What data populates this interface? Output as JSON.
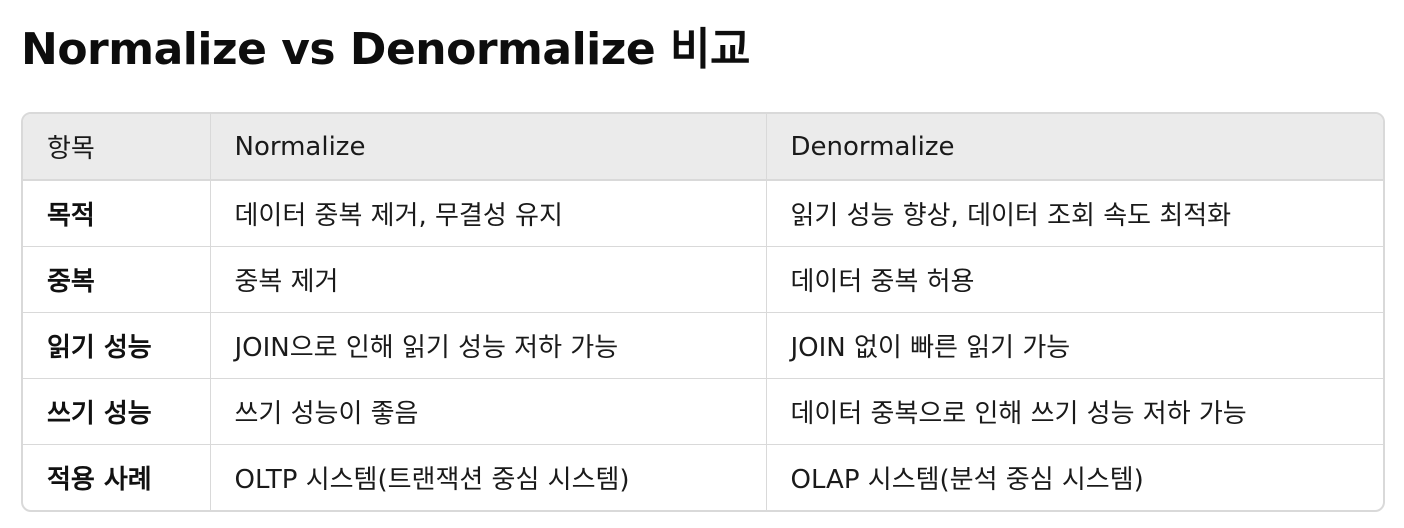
{
  "title": "Normalize vs Denormalize 비교",
  "table": {
    "headers": [
      "항목",
      "Normalize",
      "Denormalize"
    ],
    "rows": [
      {
        "item": "목적",
        "normalize": "데이터 중복 제거, 무결성 유지",
        "denormalize": "읽기 성능 향상, 데이터 조회 속도 최적화"
      },
      {
        "item": "중복",
        "normalize": "중복 제거",
        "denormalize": "데이터 중복 허용"
      },
      {
        "item": "읽기 성능",
        "normalize": "JOIN으로 인해 읽기 성능 저하 가능",
        "denormalize": "JOIN 없이 빠른 읽기 가능"
      },
      {
        "item": "쓰기 성능",
        "normalize": "쓰기 성능이 좋음",
        "denormalize": "데이터 중복으로 인해 쓰기 성능 저하 가능"
      },
      {
        "item": "적용 사례",
        "normalize": "OLTP 시스템(트랜잭션 중심 시스템)",
        "denormalize": "OLAP 시스템(분석 중심 시스템)"
      }
    ]
  }
}
